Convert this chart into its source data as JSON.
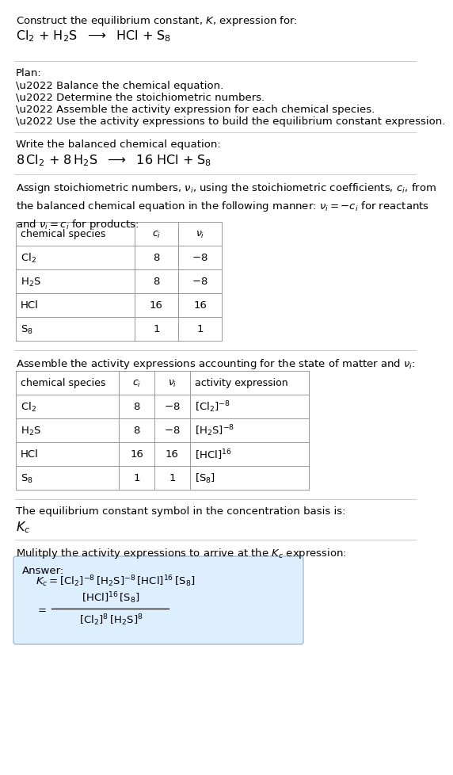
{
  "bg_color": "#ffffff",
  "text_color": "#000000",
  "sep_color": "#cccccc",
  "table_color": "#999999",
  "answer_box_bg": "#ddeeff",
  "answer_box_border": "#aabbcc",
  "font_size": 9.5,
  "font_size_large": 11.5,
  "title_line1": "Construct the equilibrium constant, $K$, expression for:",
  "title_line2_parts": [
    "$\\mathrm{Cl_2}$",
    " + ",
    "$\\mathrm{H_2S}$",
    " \\u2192 ",
    "HCl",
    " + ",
    "$\\mathrm{S_8}$"
  ],
  "plan_header": "Plan:",
  "plan_items": [
    "\\u2022 Balance the chemical equation.",
    "\\u2022 Determine the stoichiometric numbers.",
    "\\u2022 Assemble the activity expression for each chemical species.",
    "\\u2022 Use the activity expressions to build the equilibrium constant expression."
  ],
  "balanced_header": "Write the balanced chemical equation:",
  "kc_header": "The equilibrium constant symbol in the concentration basis is:",
  "kc_symbol": "$K_c$",
  "multiply_header": "Mulitply the activity expressions to arrive at the $K_c$ expression:",
  "stoich_header_text": "Assign stoichiometric numbers, $\\nu_i$, using the stoichiometric coefficients, $c_i$, from\nthe balanced chemical equation in the following manner: $\\nu_i = -c_i$ for reactants\nand $\\nu_i = c_i$ for products:",
  "activity_header_text": "Assemble the activity expressions accounting for the state of matter and $\\nu_i$:",
  "answer_label": "Answer:",
  "table1_header": [
    "chemical species",
    "$c_i$",
    "$\\nu_i$"
  ],
  "table1_data": [
    [
      "$\\mathrm{Cl_2}$",
      "8",
      "$-8$"
    ],
    [
      "$\\mathrm{H_2S}$",
      "8",
      "$-8$"
    ],
    [
      "HCl",
      "16",
      "16"
    ],
    [
      "$\\mathrm{S_8}$",
      "1",
      "1"
    ]
  ],
  "table2_header": [
    "chemical species",
    "$c_i$",
    "$\\nu_i$",
    "activity expression"
  ],
  "table2_data": [
    [
      "$\\mathrm{Cl_2}$",
      "8",
      "$-8$",
      "$[\\mathrm{Cl_2}]^{-8}$"
    ],
    [
      "$\\mathrm{H_2S}$",
      "8",
      "$-8$",
      "$[\\mathrm{H_2S}]^{-8}$"
    ],
    [
      "HCl",
      "16",
      "16",
      "$[\\mathrm{HCl}]^{16}$"
    ],
    [
      "$\\mathrm{S_8}$",
      "1",
      "1",
      "$[\\mathrm{S_8}]$"
    ]
  ]
}
